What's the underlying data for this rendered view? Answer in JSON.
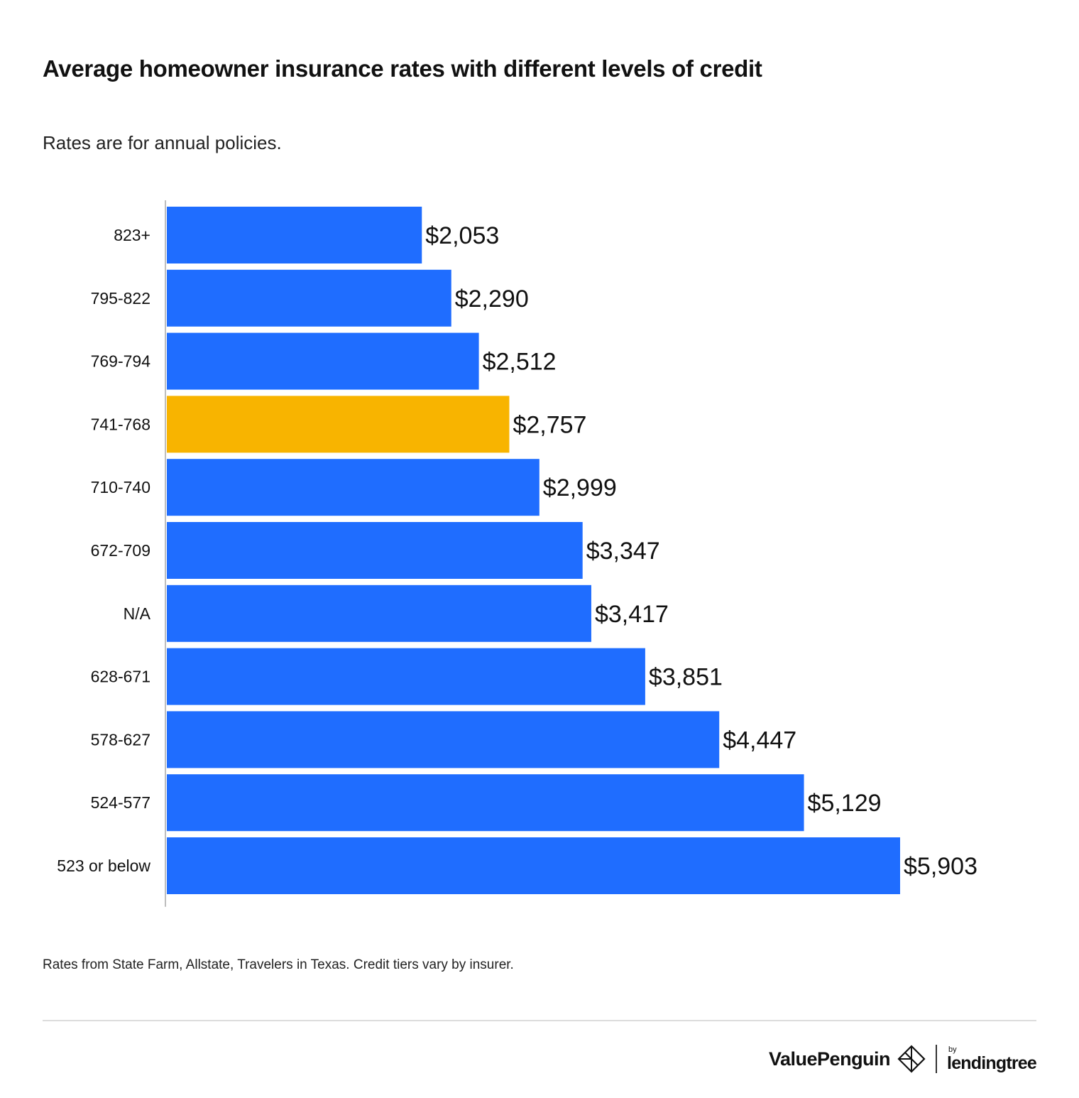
{
  "chart_data": {
    "type": "bar",
    "orientation": "horizontal",
    "title": "Average homeowner insurance rates with different levels of credit",
    "subtitle": "Rates are for annual policies.",
    "categories": [
      "823+",
      "795-822",
      "769-794",
      "741-768",
      "710-740",
      "672-709",
      "N/A",
      "628-671",
      "578-627",
      "524-577",
      "523 or below"
    ],
    "values": [
      2053,
      2290,
      2512,
      2757,
      2999,
      3347,
      3417,
      3851,
      4447,
      5129,
      5903
    ],
    "value_labels": [
      "$2,053",
      "$2,290",
      "$2,512",
      "$2,757",
      "$2,999",
      "$3,347",
      "$3,417",
      "$3,851",
      "$4,447",
      "$5,129",
      "$5,903"
    ],
    "highlight_index": 3,
    "colors": {
      "bar": "#1f6dff",
      "highlight": "#f8b400",
      "axis": "#bdbdbd"
    },
    "xlim": [
      0,
      7000
    ],
    "grid": false,
    "legend": "none"
  },
  "footnote": "Rates from State Farm, Allstate, Travelers in Texas. Credit tiers vary by insurer.",
  "logos": {
    "valuepenguin": "ValuePenguin",
    "by": "by",
    "lendingtree": "lendingtree",
    "valuepenguin_icon": "penguin-diamond-icon"
  }
}
